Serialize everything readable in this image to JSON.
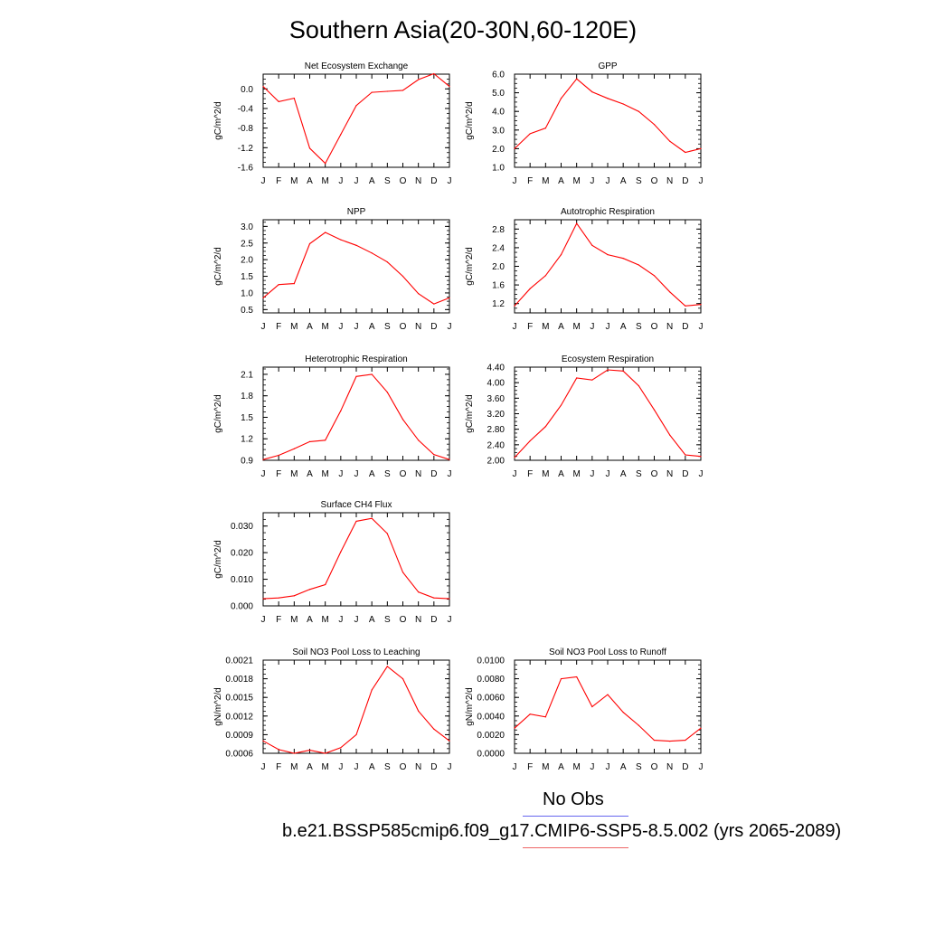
{
  "title": "Southern Asia(20-30N,60-120E)",
  "months": [
    "J",
    "F",
    "M",
    "A",
    "M",
    "J",
    "J",
    "A",
    "S",
    "O",
    "N",
    "D",
    "J"
  ],
  "legend": {
    "obs_label": "No Obs",
    "obs_color": "#6666ee",
    "model_label": "b.e21.BSSP585cmip6.f09_g17.CMIP6-SSP5-8.5.002 (yrs 2065-2089)",
    "model_color": "#ee6666"
  },
  "line_color": "#ff0000",
  "chart_data": [
    {
      "type": "line",
      "title": "Net Ecosystem Exchange",
      "ylabel": "gC/m^2/d",
      "ylim": [
        -1.6,
        0.3
      ],
      "yticks": [
        "0.0",
        "-0.4",
        "-0.8",
        "-1.2",
        "-1.6"
      ],
      "ytick_values": [
        0.0,
        -0.4,
        -0.8,
        -1.2,
        -1.6
      ],
      "x": [
        "J",
        "F",
        "M",
        "A",
        "M",
        "J",
        "J",
        "A",
        "S",
        "O",
        "N",
        "D",
        "J"
      ],
      "values": [
        0.05,
        -0.26,
        -0.19,
        -1.21,
        -1.52,
        -0.93,
        -0.34,
        -0.07,
        -0.05,
        -0.03,
        0.19,
        0.31,
        0.05
      ]
    },
    {
      "type": "line",
      "title": "GPP",
      "ylabel": "gC/m^2/d",
      "ylim": [
        1.0,
        6.0
      ],
      "yticks": [
        "6.0",
        "5.0",
        "4.0",
        "3.0",
        "2.0",
        "1.0"
      ],
      "ytick_values": [
        6.0,
        5.0,
        4.0,
        3.0,
        2.0,
        1.0
      ],
      "x": [
        "J",
        "F",
        "M",
        "A",
        "M",
        "J",
        "J",
        "A",
        "S",
        "O",
        "N",
        "D",
        "J"
      ],
      "values": [
        2.0,
        2.8,
        3.1,
        4.7,
        5.75,
        5.05,
        4.7,
        4.4,
        4.0,
        3.3,
        2.4,
        1.8,
        2.0
      ]
    },
    {
      "type": "line",
      "title": "NPP",
      "ylabel": "gC/m^2/d",
      "ylim": [
        0.4,
        3.2
      ],
      "yticks": [
        "3.0",
        "2.5",
        "2.0",
        "1.5",
        "1.0",
        "0.5"
      ],
      "ytick_values": [
        3.0,
        2.5,
        2.0,
        1.5,
        1.0,
        0.5
      ],
      "x": [
        "J",
        "F",
        "M",
        "A",
        "M",
        "J",
        "J",
        "A",
        "S",
        "O",
        "N",
        "D",
        "J"
      ],
      "values": [
        0.85,
        1.25,
        1.28,
        2.48,
        2.82,
        2.6,
        2.43,
        2.2,
        1.93,
        1.5,
        0.98,
        0.67,
        0.85
      ]
    },
    {
      "type": "line",
      "title": "Autotrophic Respiration",
      "ylabel": "gC/m^2/d",
      "ylim": [
        1.0,
        3.0
      ],
      "yticks": [
        "2.8",
        "2.4",
        "2.0",
        "1.6",
        "1.2"
      ],
      "ytick_values": [
        2.8,
        2.4,
        2.0,
        1.6,
        1.2
      ],
      "x": [
        "J",
        "F",
        "M",
        "A",
        "M",
        "J",
        "J",
        "A",
        "S",
        "O",
        "N",
        "D",
        "J"
      ],
      "values": [
        1.15,
        1.52,
        1.8,
        2.25,
        2.92,
        2.45,
        2.25,
        2.17,
        2.03,
        1.8,
        1.45,
        1.15,
        1.18
      ]
    },
    {
      "type": "line",
      "title": "Heterotrophic Respiration",
      "ylabel": "gC/m^2/d",
      "ylim": [
        0.9,
        2.2
      ],
      "yticks": [
        "2.1",
        "1.8",
        "1.5",
        "1.2",
        "0.9"
      ],
      "ytick_values": [
        2.1,
        1.8,
        1.5,
        1.2,
        0.9
      ],
      "x": [
        "J",
        "F",
        "M",
        "A",
        "M",
        "J",
        "J",
        "A",
        "S",
        "O",
        "N",
        "D",
        "J"
      ],
      "values": [
        0.91,
        0.97,
        1.06,
        1.16,
        1.18,
        1.59,
        2.07,
        2.1,
        1.85,
        1.47,
        1.18,
        0.98,
        0.91
      ]
    },
    {
      "type": "line",
      "title": "Ecosystem Respiration",
      "ylabel": "gC/m^2/d",
      "ylim": [
        2.0,
        4.4
      ],
      "yticks": [
        "4.40",
        "4.00",
        "3.60",
        "3.20",
        "2.80",
        "2.40",
        "2.00"
      ],
      "ytick_values": [
        4.4,
        4.0,
        3.6,
        3.2,
        2.8,
        2.4,
        2.0
      ],
      "x": [
        "J",
        "F",
        "M",
        "A",
        "M",
        "J",
        "J",
        "A",
        "S",
        "O",
        "N",
        "D",
        "J"
      ],
      "values": [
        2.07,
        2.5,
        2.87,
        3.42,
        4.12,
        4.07,
        4.33,
        4.3,
        3.92,
        3.3,
        2.65,
        2.14,
        2.1
      ]
    },
    {
      "type": "line",
      "title": "Surface CH4 Flux",
      "ylabel": "gC/m^2/d",
      "ylim": [
        0.0,
        0.035
      ],
      "yticks": [
        "0.030",
        "0.020",
        "0.010",
        "0.000"
      ],
      "ytick_values": [
        0.03,
        0.02,
        0.01,
        0.0
      ],
      "x": [
        "J",
        "F",
        "M",
        "A",
        "M",
        "J",
        "J",
        "A",
        "S",
        "O",
        "N",
        "D",
        "J"
      ],
      "values": [
        0.0027,
        0.003,
        0.0038,
        0.0062,
        0.008,
        0.0203,
        0.0318,
        0.0329,
        0.0272,
        0.0126,
        0.0052,
        0.003,
        0.0027
      ]
    },
    {
      "type": "line",
      "title": "Soil NO3 Pool Loss to Leaching",
      "ylabel": "gN/m^2/d",
      "ylim": [
        0.0006,
        0.0021
      ],
      "yticks": [
        "0.0021",
        "0.0018",
        "0.0015",
        "0.0012",
        "0.0009",
        "0.0006"
      ],
      "ytick_values": [
        0.0021,
        0.0018,
        0.0015,
        0.0012,
        0.0009,
        0.0006
      ],
      "x": [
        "J",
        "F",
        "M",
        "A",
        "M",
        "J",
        "J",
        "A",
        "S",
        "O",
        "N",
        "D",
        "J"
      ],
      "values": [
        0.0008,
        0.00066,
        0.0006,
        0.00065,
        0.0006,
        0.00069,
        0.0009,
        0.00162,
        0.002,
        0.0018,
        0.00128,
        0.00099,
        0.0008
      ]
    },
    {
      "type": "line",
      "title": "Soil NO3 Pool Loss to Runoff",
      "ylabel": "gN/m^2/d",
      "ylim": [
        0.0,
        0.01
      ],
      "yticks": [
        "0.0100",
        "0.0080",
        "0.0060",
        "0.0040",
        "0.0020",
        "0.0000"
      ],
      "ytick_values": [
        0.01,
        0.008,
        0.006,
        0.004,
        0.002,
        0.0
      ],
      "x": [
        "J",
        "F",
        "M",
        "A",
        "M",
        "J",
        "J",
        "A",
        "S",
        "O",
        "N",
        "D",
        "J"
      ],
      "values": [
        0.0027,
        0.0042,
        0.0039,
        0.008,
        0.0082,
        0.005,
        0.0063,
        0.0044,
        0.003,
        0.0014,
        0.0013,
        0.0014,
        0.0027
      ]
    }
  ]
}
